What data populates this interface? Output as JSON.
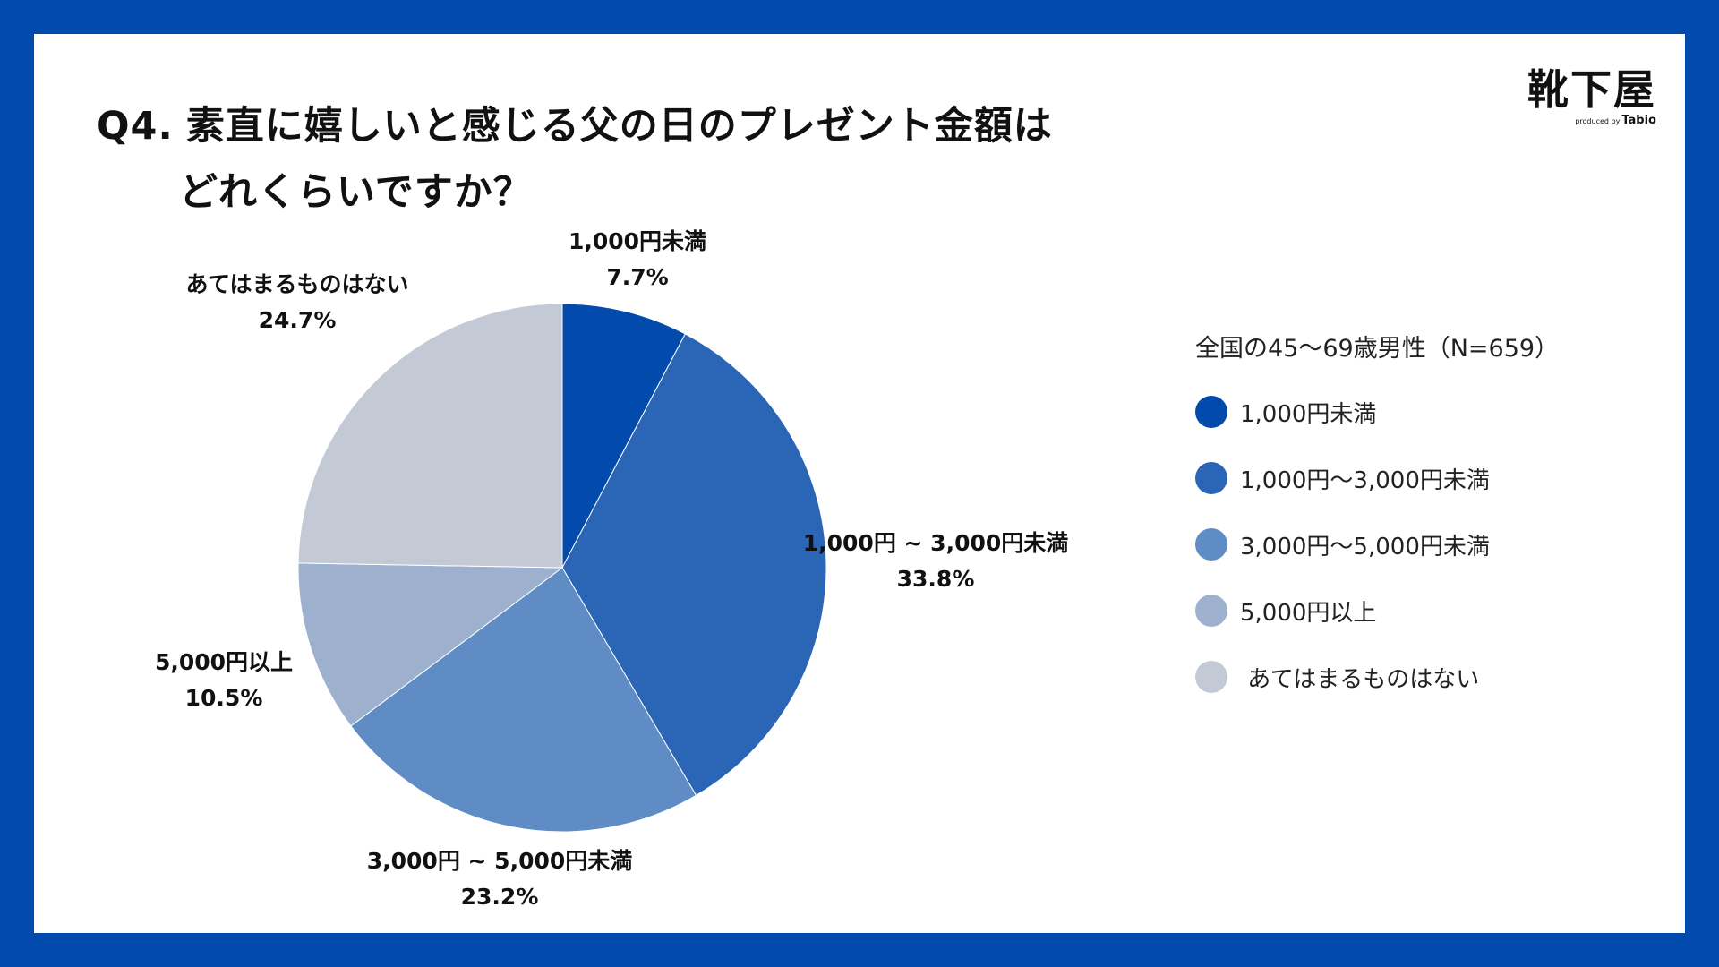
{
  "title": {
    "qnum": "Q4.",
    "line1": "素直に嬉しいと感じる父の日のプレゼント金額は",
    "line2": "どれくらいですか？"
  },
  "logo": {
    "mark": "靴下屋",
    "produced_by": "produced by",
    "brand": "Tabio"
  },
  "legend": {
    "caption": "全国の45〜69歳男性（N=659）",
    "items": [
      {
        "label": "1,000円未満"
      },
      {
        "label": "1,000円〜3,000円未満"
      },
      {
        "label": "3,000円〜5,000円未満"
      },
      {
        "label": "5,000円以上"
      },
      {
        "label": " あてはまるものはない"
      }
    ]
  },
  "chart_data": {
    "type": "pie",
    "series": [
      {
        "values": [
          7.7,
          33.8,
          23.2,
          10.5,
          24.7
        ]
      }
    ],
    "categories": [
      "1,000円未満",
      "1,000円 ~ 3,000円未満",
      "3,000円 ~ 5,000円未満",
      "5,000円以上",
      "あてはまるものはない"
    ],
    "value_labels": [
      "7.7%",
      "33.8%",
      "23.2%",
      "10.5%",
      "24.7%"
    ],
    "start_angle": "12 o'clock",
    "direction": "clockwise",
    "colors": [
      "#024aac",
      "#2a66b5",
      "#5f8cc5",
      "#9db1cf",
      "#c3cad5"
    ],
    "legend_position": "right"
  }
}
